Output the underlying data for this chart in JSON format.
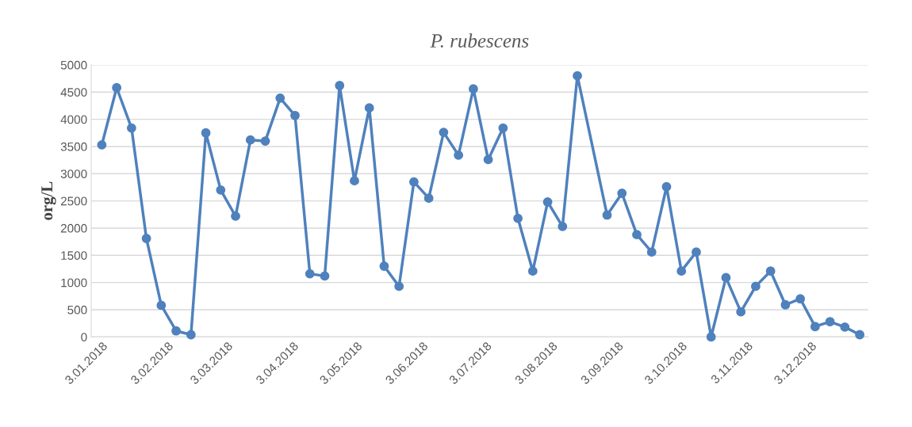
{
  "chart_data": {
    "type": "line",
    "title": "P. rubescens",
    "ylabel": "org/L",
    "x": [
      "2018-01-03",
      "2018-01-10",
      "2018-01-17",
      "2018-01-24",
      "2018-01-31",
      "2018-02-07",
      "2018-02-14",
      "2018-02-21",
      "2018-02-28",
      "2018-03-07",
      "2018-03-14",
      "2018-03-21",
      "2018-03-28",
      "2018-04-04",
      "2018-04-11",
      "2018-04-18",
      "2018-04-25",
      "2018-05-02",
      "2018-05-09",
      "2018-05-16",
      "2018-05-23",
      "2018-05-30",
      "2018-06-06",
      "2018-06-13",
      "2018-06-20",
      "2018-06-27",
      "2018-07-04",
      "2018-07-11",
      "2018-07-18",
      "2018-07-25",
      "2018-08-01",
      "2018-08-08",
      "2018-08-15",
      "2018-08-29",
      "2018-09-05",
      "2018-09-12",
      "2018-09-19",
      "2018-09-26",
      "2018-10-03",
      "2018-10-10",
      "2018-10-17",
      "2018-10-24",
      "2018-10-31",
      "2018-11-07",
      "2018-11-14",
      "2018-11-21",
      "2018-11-28",
      "2018-12-05",
      "2018-12-12",
      "2018-12-19",
      "2018-12-26"
    ],
    "series": [
      {
        "color": "#4f81bd",
        "values": [
          3530,
          4580,
          3840,
          1810,
          580,
          110,
          40,
          3750,
          2700,
          2220,
          3620,
          3600,
          4390,
          4070,
          1160,
          1120,
          4620,
          2870,
          4210,
          1300,
          930,
          2850,
          2550,
          3760,
          3340,
          4560,
          3260,
          3840,
          2180,
          1210,
          2480,
          2030,
          4800,
          2240,
          2640,
          1880,
          1560,
          2760,
          1210,
          1560,
          0,
          1090,
          460,
          930,
          1210,
          590,
          700,
          190,
          280,
          180,
          40
        ]
      }
    ],
    "xlim": [
      "2017-12-29",
      "2018-12-30"
    ],
    "xticks": [
      {
        "value": "2018-01-03",
        "label": "3.01.2018"
      },
      {
        "value": "2018-02-03",
        "label": "3.02.2018"
      },
      {
        "value": "2018-03-03",
        "label": "3.03.2018"
      },
      {
        "value": "2018-04-03",
        "label": "3.04.2018"
      },
      {
        "value": "2018-05-03",
        "label": "3.05.2018"
      },
      {
        "value": "2018-06-03",
        "label": "3.06.2018"
      },
      {
        "value": "2018-07-03",
        "label": "3.07.2018"
      },
      {
        "value": "2018-08-03",
        "label": "3.08.2018"
      },
      {
        "value": "2018-09-03",
        "label": "3.09.2018"
      },
      {
        "value": "2018-10-03",
        "label": "3.10.2018"
      },
      {
        "value": "2018-11-03",
        "label": "3.11.2018"
      },
      {
        "value": "2018-12-03",
        "label": "3.12.2018"
      }
    ],
    "ylim": [
      0,
      5000
    ],
    "yticks": [
      0,
      500,
      1000,
      1500,
      2000,
      2500,
      3000,
      3500,
      4000,
      4500,
      5000
    ],
    "grid": "y",
    "marker": "circle",
    "line_style": "solid",
    "legend": false
  }
}
